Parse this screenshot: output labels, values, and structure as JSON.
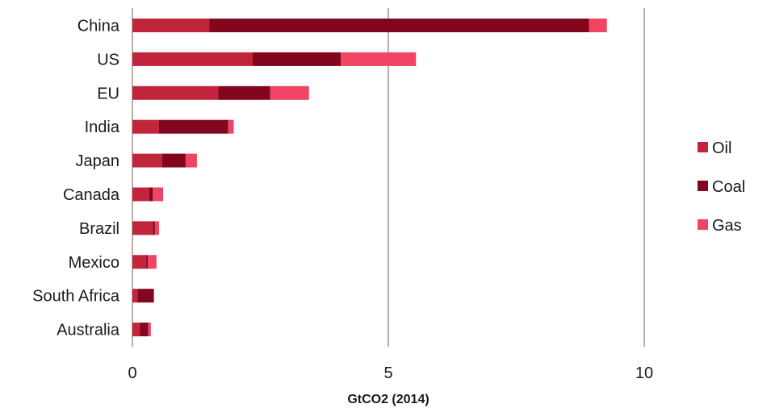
{
  "chart_data": {
    "type": "bar",
    "orientation": "horizontal",
    "stacked": true,
    "categories": [
      "China",
      "US",
      "EU",
      "India",
      "Japan",
      "Canada",
      "Brazil",
      "Mexico",
      "South Africa",
      "Australia"
    ],
    "series": [
      {
        "name": "Oil",
        "color": "#c0253c",
        "values": [
          1.5,
          2.35,
          1.68,
          0.52,
          0.58,
          0.33,
          0.4,
          0.27,
          0.1,
          0.15
        ]
      },
      {
        "name": "Coal",
        "color": "#82061d",
        "values": [
          7.42,
          1.72,
          1.01,
          1.35,
          0.46,
          0.07,
          0.04,
          0.03,
          0.32,
          0.16
        ]
      },
      {
        "name": "Gas",
        "color": "#ef4463",
        "values": [
          0.35,
          1.47,
          0.76,
          0.11,
          0.22,
          0.2,
          0.08,
          0.17,
          0.0,
          0.05
        ]
      }
    ],
    "xlabel": "GtCO2 (2014)",
    "xlim": [
      0,
      12.3
    ],
    "xticks": [
      0,
      5,
      10
    ],
    "grid": "vertical",
    "legend_position": "right"
  }
}
